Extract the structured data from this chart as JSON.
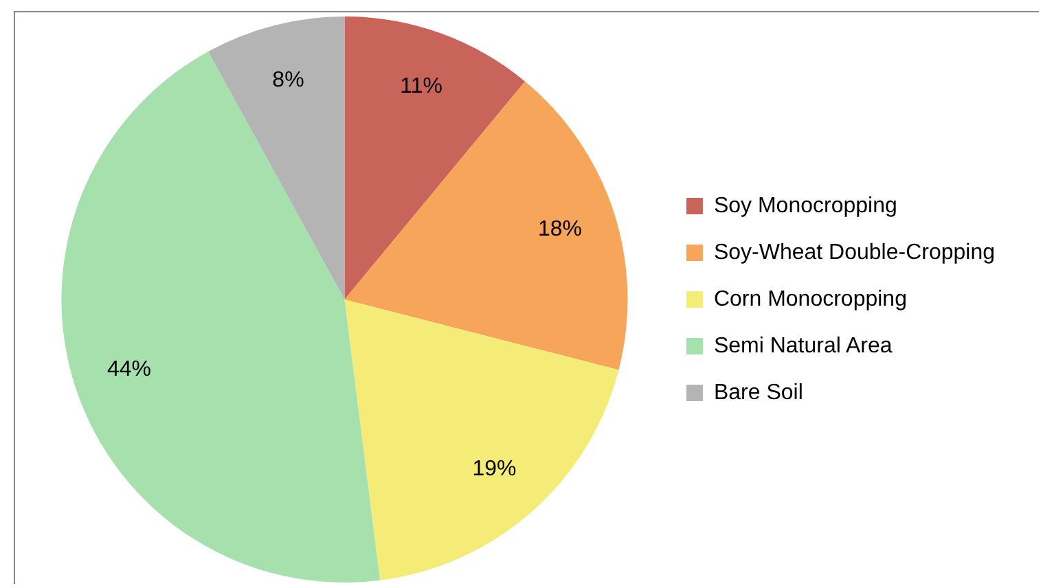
{
  "chart_data": {
    "type": "pie",
    "categories": [
      "Soy Monocropping",
      "Soy-Wheat Double-Cropping",
      "Corn Monocropping",
      "Semi Natural Area",
      "Bare Soil"
    ],
    "values": [
      11,
      18,
      19,
      44,
      8
    ],
    "colors": [
      "#c9645a",
      "#f6a55a",
      "#f5ec78",
      "#a5e0ad",
      "#b4b4b4"
    ],
    "value_labels": [
      "11%",
      "18%",
      "19%",
      "44%",
      "8%"
    ],
    "legend": "right"
  }
}
